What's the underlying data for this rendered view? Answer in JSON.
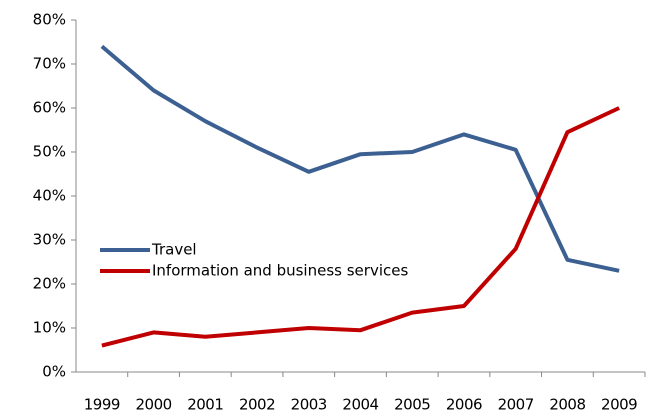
{
  "chart_data": {
    "type": "line",
    "categories": [
      "1999",
      "2000",
      "2001",
      "2002",
      "2003",
      "2004",
      "2005",
      "2006",
      "2007",
      "2008",
      "2009"
    ],
    "series": [
      {
        "name": "Travel",
        "color": "#3b6091",
        "values": [
          74,
          64,
          57,
          51,
          45.5,
          49.5,
          50,
          54,
          50.5,
          25.5,
          23
        ]
      },
      {
        "name": "Information and business services",
        "color": "#c00000",
        "values": [
          6,
          9,
          8,
          9,
          10,
          9.5,
          13.5,
          15,
          28,
          54.5,
          60
        ]
      }
    ],
    "ylim": [
      0,
      80
    ],
    "yticks": [
      {
        "value": 0,
        "label": "0%"
      },
      {
        "value": 10,
        "label": "10%"
      },
      {
        "value": 20,
        "label": "20%"
      },
      {
        "value": 30,
        "label": "30%"
      },
      {
        "value": 40,
        "label": "40%"
      },
      {
        "value": 50,
        "label": "50%"
      },
      {
        "value": 60,
        "label": "60%"
      },
      {
        "value": 70,
        "label": "70%"
      },
      {
        "value": 80,
        "label": "80%"
      }
    ],
    "grid": false,
    "legend": "left"
  }
}
